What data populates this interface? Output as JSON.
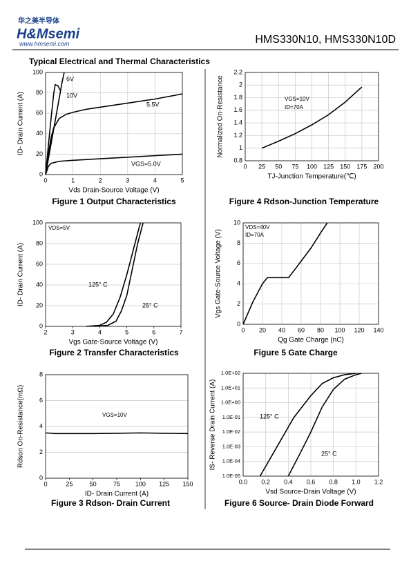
{
  "header": {
    "logo_cn": "华之美半导体",
    "logo": "H&Msemi",
    "website": "www.hmsemi.com",
    "part_number": "HMS330N10, HMS330N10D"
  },
  "section_title": "Typical Electrical and Thermal Characteristics",
  "chart_data": [
    {
      "type": "line",
      "caption": "Figure 1 Output Characteristics",
      "xlabel": "Vds Drain-Source Voltage (V)",
      "ylabel": "ID- Drain Current (A)",
      "xlim": [
        0,
        5
      ],
      "ylim": [
        0,
        100
      ],
      "xticks": [
        0,
        1,
        2,
        3,
        4,
        5
      ],
      "yticks": [
        0,
        20,
        40,
        60,
        80,
        100
      ],
      "grid": "both",
      "series": [
        {
          "name": "6V",
          "color": "#000000",
          "x": [
            0,
            0.1,
            0.2,
            0.3,
            0.35,
            0.45,
            0.55
          ],
          "values": [
            0,
            28,
            55,
            80,
            88,
            87,
            82
          ]
        },
        {
          "name": "10V",
          "color": "#000000",
          "x": [
            0,
            0.2,
            0.4,
            0.6,
            0.68
          ],
          "values": [
            0,
            30,
            60,
            90,
            100
          ]
        },
        {
          "name": "5.5V",
          "color": "#000000",
          "x": [
            0,
            0.1,
            0.2,
            0.3,
            0.5,
            0.75,
            1,
            1.5,
            2,
            3,
            4,
            5
          ],
          "values": [
            0,
            20,
            36,
            46,
            55,
            59,
            61,
            64,
            66,
            70,
            74,
            79
          ]
        },
        {
          "name": "VGS=5.0V",
          "color": "#000000",
          "x": [
            0,
            0.1,
            0.2,
            0.5,
            1,
            2,
            3,
            4,
            5
          ],
          "values": [
            0,
            8,
            11,
            13,
            14,
            15.5,
            17,
            18.5,
            20
          ]
        }
      ]
    },
    {
      "type": "line",
      "caption": "Figure 2 Transfer Characteristics",
      "xlabel": "Vgs Gate-Source Voltage (V)",
      "ylabel": "ID- Drain Current (A)",
      "xlim": [
        2,
        7
      ],
      "ylim": [
        0,
        100
      ],
      "xticks": [
        2,
        3,
        4,
        5,
        6,
        7
      ],
      "yticks": [
        0,
        20,
        40,
        60,
        80,
        100
      ],
      "grid": "y",
      "annotations": [
        "VDS=5V"
      ],
      "series": [
        {
          "name": "125° C",
          "color": "#000000",
          "x": [
            3.5,
            4,
            4.25,
            4.5,
            4.75,
            5,
            5.25,
            5.5
          ],
          "values": [
            0,
            1,
            4,
            12,
            28,
            50,
            75,
            100
          ]
        },
        {
          "name": "25° C",
          "color": "#000000",
          "x": [
            3.8,
            4.3,
            4.6,
            4.8,
            5,
            5.2,
            5.4,
            5.6
          ],
          "values": [
            0,
            1,
            5,
            15,
            30,
            55,
            80,
            100
          ]
        }
      ]
    },
    {
      "type": "line",
      "caption": "Figure 3 Rdson- Drain Current",
      "xlabel": "ID- Drain Current (A)",
      "ylabel": "Rdson On-Resistance(mΩ)",
      "xlim": [
        0,
        150
      ],
      "ylim": [
        0,
        8
      ],
      "xticks": [
        0,
        25,
        50,
        75,
        100,
        125,
        150
      ],
      "yticks": [
        0,
        2,
        4,
        6,
        8
      ],
      "grid": "y",
      "annotations": [
        "VGS=10V"
      ],
      "series": [
        {
          "color": "#000000",
          "x": [
            0,
            10,
            25,
            50,
            75,
            100,
            125,
            150
          ],
          "values": [
            3.5,
            3.45,
            3.45,
            3.45,
            3.47,
            3.5,
            3.47,
            3.45
          ]
        }
      ]
    },
    {
      "type": "line",
      "caption": "Figure 4 Rdson-Junction Temperature",
      "xlabel": "TJ-Junction Temperature(℃)",
      "ylabel": "Normalized On-Resistance",
      "xlim": [
        0,
        200
      ],
      "ylim": [
        0.8,
        2.2
      ],
      "xticks": [
        0,
        25,
        50,
        75,
        100,
        125,
        150,
        175,
        200
      ],
      "yticks": [
        0.8,
        1,
        1.2,
        1.4,
        1.6,
        1.8,
        2,
        2.2
      ],
      "grid": "both",
      "annotations": [
        "VGS=10V",
        "ID=70A"
      ],
      "series": [
        {
          "color": "#000000",
          "x": [
            25,
            50,
            75,
            100,
            125,
            150,
            175
          ],
          "values": [
            1.0,
            1.11,
            1.23,
            1.37,
            1.53,
            1.73,
            1.97
          ]
        }
      ]
    },
    {
      "type": "line",
      "caption": "Figure 5 Gate Charge",
      "xlabel": "Qg Gate Charge (nC)",
      "ylabel": "Vgs Gate-Source Voltage (V)",
      "xlim": [
        0,
        140
      ],
      "ylim": [
        0,
        10
      ],
      "xticks": [
        0,
        20,
        40,
        60,
        80,
        100,
        120,
        140
      ],
      "yticks": [
        0,
        2,
        4,
        6,
        8,
        10
      ],
      "grid": "both",
      "annotations": [
        "VDS=40V",
        "ID=70A"
      ],
      "series": [
        {
          "color": "#000000",
          "x": [
            0,
            10,
            20,
            25,
            47,
            55,
            70,
            80,
            87
          ],
          "values": [
            0,
            2.2,
            4,
            4.6,
            4.6,
            5.6,
            7.5,
            9,
            10
          ]
        }
      ]
    },
    {
      "type": "line",
      "caption": "Figure 6 Source- Drain Diode Forward",
      "xlabel": "Vsd Source-Drain Voltage (V)",
      "ylabel": "IS- Reverse Drain Current (A)",
      "xlim": [
        0,
        1.2
      ],
      "ylim": [
        1e-05,
        100
      ],
      "yscale": "log",
      "xticks": [
        {
          "value": 0,
          "label": "0.0"
        },
        0.2,
        0.4,
        0.6,
        0.8,
        {
          "value": 1,
          "label": "1.0"
        },
        1.2
      ],
      "yticks": [
        {
          "value": 1e-05,
          "label": "1.0E-05"
        },
        {
          "value": 0.0001,
          "label": "1.0E-04"
        },
        {
          "value": 0.001,
          "label": "1.0E-03"
        },
        {
          "value": 0.01,
          "label": "1.0E-02"
        },
        {
          "value": 0.1,
          "label": "1.0E-01"
        },
        {
          "value": 1,
          "label": "1.0E+00"
        },
        {
          "value": 10,
          "label": "1.0E+01"
        },
        {
          "value": 100,
          "label": "1.0E+02"
        }
      ],
      "grid": "both",
      "series": [
        {
          "name": "125° C",
          "color": "#000000",
          "x": [
            0.15,
            0.3,
            0.45,
            0.6,
            0.7,
            0.8,
            0.9,
            1.0
          ],
          "values": [
            1e-05,
            0.001,
            0.1,
            3,
            20,
            50,
            80,
            100
          ]
        },
        {
          "name": "25° C",
          "color": "#000000",
          "x": [
            0.4,
            0.5,
            0.6,
            0.7,
            0.8,
            0.9,
            1.0,
            1.05
          ],
          "values": [
            1e-05,
            0.0003,
            0.01,
            0.5,
            8,
            40,
            80,
            100
          ]
        }
      ]
    }
  ]
}
